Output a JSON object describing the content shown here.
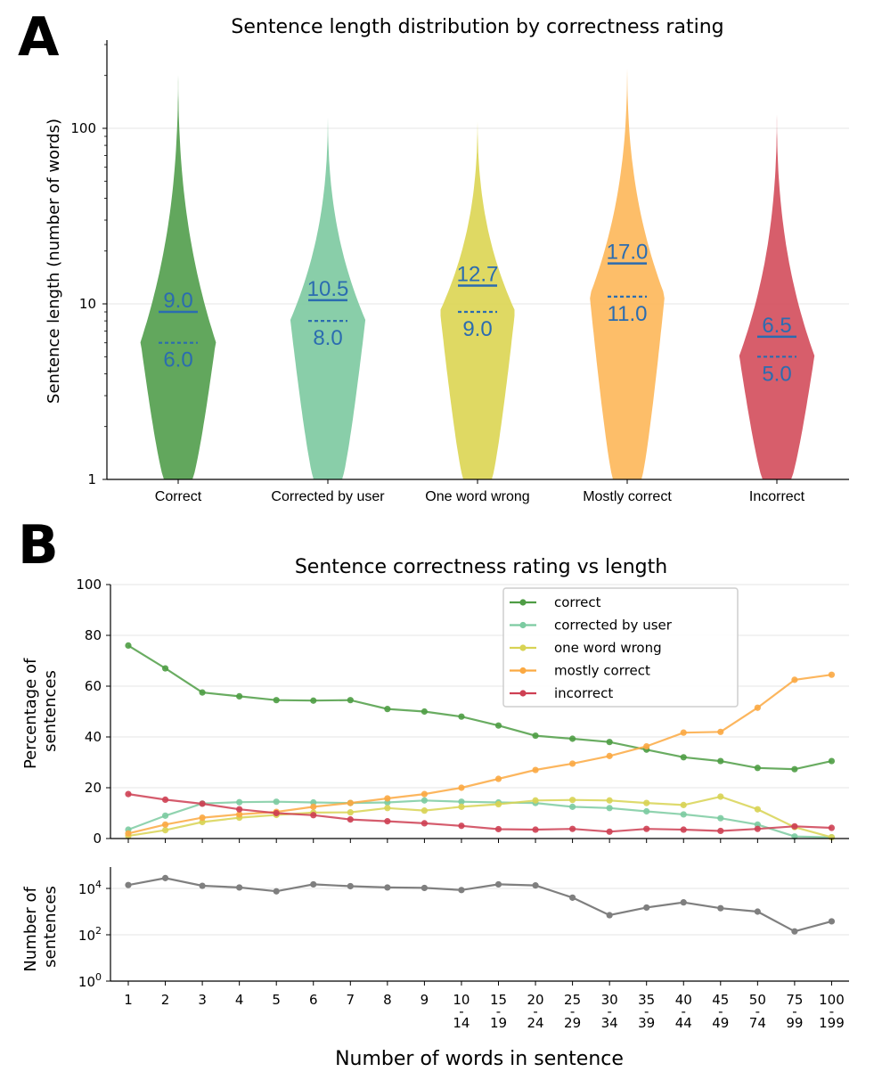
{
  "panels": {
    "a_letter": "A",
    "b_letter": "B"
  },
  "chart_data": [
    {
      "type": "violin",
      "title": "Sentence length distribution by correctness rating",
      "ylabel": "Sentence length (number of words)",
      "yscale": "log",
      "ylim": [
        1,
        300
      ],
      "yticks": [
        {
          "value": 1,
          "label": "1"
        },
        {
          "value": 10,
          "label": "10"
        },
        {
          "value": 100,
          "label": "100"
        }
      ],
      "categories": [
        "Correct",
        "Corrected by user",
        "One word wrong",
        "Mostly correct",
        "Incorrect"
      ],
      "colors": [
        "#55a04f",
        "#7fcaa2",
        "#dcd656",
        "#fdb95c",
        "#d4505e"
      ],
      "means": [
        9.0,
        10.5,
        12.7,
        17.0,
        6.5
      ],
      "medians": [
        6.0,
        8.0,
        9.0,
        11.0,
        5.0
      ],
      "mean_labels": [
        "9.0",
        "10.5",
        "12.7",
        "17.0",
        "6.5"
      ],
      "median_labels": [
        "6.0",
        "8.0",
        "9.0",
        "11.0",
        "5.0"
      ],
      "max_lengths": [
        220,
        125,
        118,
        240,
        130
      ]
    },
    {
      "type": "line",
      "title": "Sentence correctness rating vs length",
      "ylabel": [
        "Percentage of",
        "sentences"
      ],
      "ylim": [
        0,
        100
      ],
      "yticks": [
        0,
        20,
        40,
        60,
        80,
        100
      ],
      "legend_position": "top-right",
      "x_labels": [
        [
          "1"
        ],
        [
          "2"
        ],
        [
          "3"
        ],
        [
          "4"
        ],
        [
          "5"
        ],
        [
          "6"
        ],
        [
          "7"
        ],
        [
          "8"
        ],
        [
          "9"
        ],
        [
          "10",
          "-",
          "14"
        ],
        [
          "15",
          "-",
          "19"
        ],
        [
          "20",
          "-",
          "24"
        ],
        [
          "25",
          "-",
          "29"
        ],
        [
          "30",
          "-",
          "34"
        ],
        [
          "35",
          "-",
          "39"
        ],
        [
          "40",
          "-",
          "44"
        ],
        [
          "45",
          "-",
          "49"
        ],
        [
          "50",
          "-",
          "74"
        ],
        [
          "75",
          "-",
          "99"
        ],
        [
          "100",
          "-",
          "199"
        ]
      ],
      "series": [
        {
          "name": "correct",
          "color": "#4f9d45",
          "values": [
            76,
            67,
            57.5,
            56,
            54.5,
            54.3,
            54.5,
            51,
            50,
            48,
            44.5,
            40.5,
            39.3,
            38,
            35,
            32,
            30.5,
            27.8,
            27.3,
            30.5
          ]
        },
        {
          "name": "corrected by user",
          "color": "#7ccba1",
          "values": [
            3.5,
            9,
            13.8,
            14.3,
            14.5,
            14.2,
            14,
            14.2,
            15,
            14.5,
            14.2,
            14,
            12.5,
            12,
            10.7,
            9.5,
            8,
            5.5,
            0.8,
            0.5
          ]
        },
        {
          "name": "one word wrong",
          "color": "#d8d354",
          "values": [
            1,
            3.3,
            6.5,
            8.2,
            9.3,
            10.2,
            10.3,
            12,
            11,
            12.5,
            13.5,
            15,
            15.2,
            15,
            14,
            13.2,
            16.5,
            11.5,
            4.5,
            0.5
          ]
        },
        {
          "name": "mostly correct",
          "color": "#fba942",
          "values": [
            2,
            5.5,
            8.2,
            9.5,
            10.5,
            12.5,
            14,
            15.8,
            17.5,
            20,
            23.5,
            27,
            29.5,
            32.5,
            36.3,
            41.7,
            42,
            51.5,
            62.5,
            64.5
          ]
        },
        {
          "name": "incorrect",
          "color": "#ce4053",
          "values": [
            17.5,
            15.3,
            13.7,
            11.5,
            10,
            9.2,
            7.5,
            6.8,
            6,
            5,
            3.7,
            3.5,
            3.8,
            2.7,
            3.8,
            3.5,
            3,
            3.8,
            4.8,
            4.2
          ]
        }
      ]
    },
    {
      "type": "line",
      "ylabel": [
        "Number of",
        "sentences"
      ],
      "xlabel": "Number of words in sentence",
      "yscale": "log",
      "ylim": [
        1,
        100000
      ],
      "yticks": [
        {
          "value": 1,
          "base": "10",
          "exp": "0"
        },
        {
          "value": 100,
          "base": "10",
          "exp": "2"
        },
        {
          "value": 10000,
          "base": "10",
          "exp": "4"
        }
      ],
      "series": [
        {
          "name": "count",
          "color": "#7f7f7f",
          "values": [
            14000,
            28000,
            13000,
            11000,
            7500,
            15000,
            12500,
            11000,
            10500,
            8500,
            15000,
            13500,
            4000,
            700,
            1500,
            2500,
            1400,
            1000,
            140,
            380
          ]
        }
      ]
    }
  ]
}
